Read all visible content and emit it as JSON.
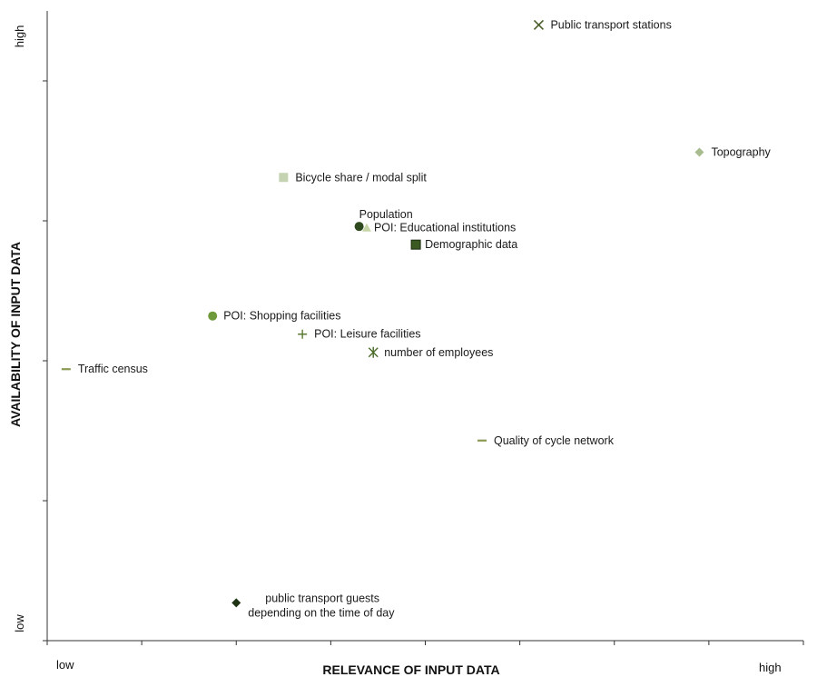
{
  "chart_data": {
    "type": "scatter",
    "title": "",
    "xlabel": "RELEVANCE OF INPUT DATA",
    "ylabel": "AVAILABILITY OF INPUT DATA",
    "x_low_label": "low",
    "x_high_label": "high",
    "y_low_label": "low",
    "y_high_label": "high",
    "xlim": [
      0,
      8
    ],
    "ylim": [
      0,
      4.5
    ],
    "grid": false,
    "points": [
      {
        "label": "Public transport stations",
        "label_lines": [
          "Public transport stations"
        ],
        "x": 5.2,
        "y": 4.4,
        "marker": "x",
        "color": "#4a5e2a"
      },
      {
        "label": "Topography",
        "label_lines": [
          "Topography"
        ],
        "x": 6.9,
        "y": 3.49,
        "marker": "diamond",
        "color": "#a9bc8f"
      },
      {
        "label": "Bicycle share / modal split",
        "label_lines": [
          "Bicycle share / modal split"
        ],
        "x": 2.5,
        "y": 3.31,
        "marker": "square",
        "color": "#c5d3b3"
      },
      {
        "label": "Population",
        "label_lines": [
          "Population"
        ],
        "x": 3.3,
        "y": 2.96,
        "marker": "circle-half",
        "color": "#2f4a1e"
      },
      {
        "label": "POI: Educational institutions",
        "label_lines": [
          "POI: Educational institutions"
        ],
        "x": 3.38,
        "y": 2.95,
        "marker": "triangle",
        "color": "#c7d6a8"
      },
      {
        "label": "Demographic data",
        "label_lines": [
          "Demographic data"
        ],
        "x": 3.9,
        "y": 2.83,
        "marker": "square-dark",
        "color": "#3b5a22"
      },
      {
        "label": "POI: Shopping facilities",
        "label_lines": [
          "POI: Shopping facilities"
        ],
        "x": 1.75,
        "y": 2.32,
        "marker": "circle",
        "color": "#6e9a3c"
      },
      {
        "label": "POI: Leisure facilities",
        "label_lines": [
          "POI: Leisure facilities"
        ],
        "x": 2.7,
        "y": 2.19,
        "marker": "plus",
        "color": "#5a7a33"
      },
      {
        "label": "number of employees",
        "label_lines": [
          "number of employees"
        ],
        "x": 3.45,
        "y": 2.06,
        "marker": "star",
        "color": "#4a6b2a"
      },
      {
        "label": "Traffic census",
        "label_lines": [
          "Traffic census"
        ],
        "x": 0.2,
        "y": 1.94,
        "marker": "dash",
        "color": "#8a9a55"
      },
      {
        "label": "Quality of cycle network",
        "label_lines": [
          "Quality of cycle network"
        ],
        "x": 4.6,
        "y": 1.43,
        "marker": "dash",
        "color": "#8a9a55"
      },
      {
        "label": "public transport guests depending on the time of day",
        "label_lines": [
          "public transport guests",
          "depending on the time of day"
        ],
        "x": 2.0,
        "y": 0.27,
        "marker": "diamond-dark",
        "color": "#1f3314"
      }
    ]
  }
}
